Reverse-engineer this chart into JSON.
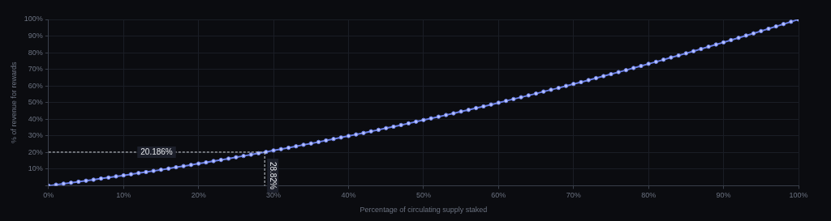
{
  "chart_data": {
    "type": "line",
    "xlabel": "Percentage of circulating supply staked",
    "ylabel": "% of revenue for rewards",
    "x": [
      0,
      1,
      2,
      3,
      4,
      5,
      6,
      7,
      8,
      9,
      10,
      11,
      12,
      13,
      14,
      15,
      16,
      17,
      18,
      19,
      20,
      21,
      22,
      23,
      24,
      25,
      26,
      27,
      28,
      29,
      30,
      31,
      32,
      33,
      34,
      35,
      36,
      37,
      38,
      39,
      40,
      41,
      42,
      43,
      44,
      45,
      46,
      47,
      48,
      49,
      50,
      51,
      52,
      53,
      54,
      55,
      56,
      57,
      58,
      59,
      60,
      61,
      62,
      63,
      64,
      65,
      66,
      67,
      68,
      69,
      70,
      71,
      72,
      73,
      74,
      75,
      76,
      77,
      78,
      79,
      80,
      81,
      82,
      83,
      84,
      85,
      86,
      87,
      88,
      89,
      90,
      91,
      92,
      93,
      94,
      95,
      96,
      97,
      98,
      99,
      100
    ],
    "series": [
      {
        "color": "#6a7fe6",
        "values": [
          0,
          0.6,
          1.2,
          1.8,
          2.4,
          3.0,
          3.6,
          4.3,
          4.9,
          5.6,
          6.2,
          6.9,
          7.6,
          8.2,
          8.9,
          9.6,
          10.3,
          11.1,
          11.8,
          12.5,
          13.3,
          14.0,
          14.8,
          15.5,
          16.3,
          17.1,
          17.9,
          18.7,
          19.5,
          20.3,
          21.2,
          22.0,
          22.8,
          23.7,
          24.6,
          25.4,
          26.3,
          27.2,
          28.1,
          29.0,
          29.9,
          30.8,
          31.7,
          32.7,
          33.6,
          34.6,
          35.5,
          36.5,
          37.5,
          38.5,
          39.5,
          40.5,
          41.5,
          42.5,
          43.5,
          44.6,
          45.6,
          46.7,
          47.7,
          48.8,
          49.9,
          51.0,
          52.1,
          53.2,
          54.3,
          55.4,
          56.6,
          57.7,
          58.8,
          60.0,
          61.2,
          62.3,
          63.5,
          64.7,
          65.9,
          67.1,
          68.3,
          69.5,
          70.8,
          72.0,
          73.3,
          74.5,
          75.8,
          77.1,
          78.3,
          79.6,
          80.9,
          82.2,
          83.6,
          84.9,
          86.2,
          87.6,
          88.9,
          90.3,
          91.6,
          93.0,
          94.4,
          95.8,
          97.2,
          98.6,
          100.0
        ]
      }
    ],
    "xlim": [
      0,
      100
    ],
    "ylim": [
      0,
      100
    ],
    "xticks": [
      {
        "value": 0,
        "label": "0%"
      },
      {
        "value": 10,
        "label": "10%"
      },
      {
        "value": 20,
        "label": "20%"
      },
      {
        "value": 30,
        "label": "30%"
      },
      {
        "value": 40,
        "label": "40%"
      },
      {
        "value": 50,
        "label": "50%"
      },
      {
        "value": 60,
        "label": "60%"
      },
      {
        "value": 70,
        "label": "70%"
      },
      {
        "value": 80,
        "label": "80%"
      },
      {
        "value": 90,
        "label": "90%"
      },
      {
        "value": 100,
        "label": "100%"
      }
    ],
    "yticks": [
      {
        "value": 0,
        "label": null
      },
      {
        "value": 10,
        "label": "10%"
      },
      {
        "value": 20,
        "label": "20%"
      },
      {
        "value": 30,
        "label": "30%"
      },
      {
        "value": 40,
        "label": "40%"
      },
      {
        "value": 50,
        "label": "50%"
      },
      {
        "value": 60,
        "label": "60%"
      },
      {
        "value": 70,
        "label": "70%"
      },
      {
        "value": 80,
        "label": "80%"
      },
      {
        "value": 90,
        "label": "90%"
      },
      {
        "value": 100,
        "label": "100%"
      }
    ],
    "ref_lines": [
      {
        "axis": "y",
        "value": 20.186,
        "label": "20.186%",
        "color": "#d1d5db",
        "line_style": "dashed"
      },
      {
        "axis": "x",
        "value": 28.82,
        "label": "28.82%",
        "color": "#d1d5db",
        "line_style": "dashed"
      }
    ],
    "grid": true,
    "legend": false,
    "marker": "circle",
    "line_style": "solid"
  }
}
